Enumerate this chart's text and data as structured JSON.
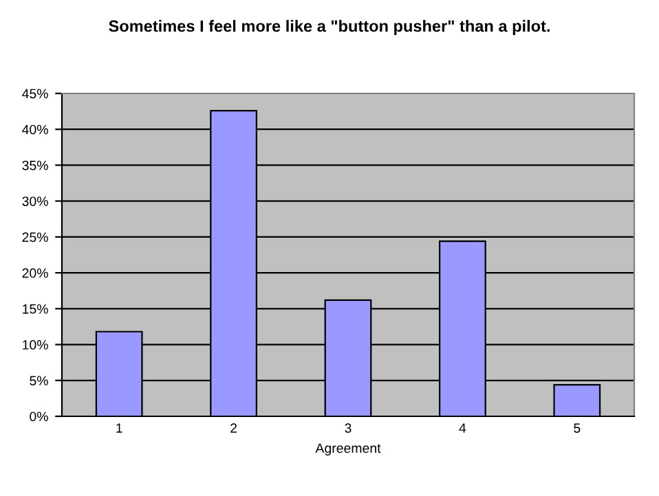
{
  "chart_data": {
    "type": "bar",
    "title": "Sometimes I feel more like a \"button pusher\" than a pilot.",
    "xlabel": "Agreement",
    "categories": [
      "1",
      "2",
      "3",
      "4",
      "5"
    ],
    "values": [
      11.8,
      42.6,
      16.2,
      24.4,
      4.4
    ],
    "color": "#9999ff",
    "ylim": [
      0,
      45
    ],
    "yticks": [
      {
        "value": 0,
        "label": "0%"
      },
      {
        "value": 5,
        "label": "5%"
      },
      {
        "value": 10,
        "label": "10%"
      },
      {
        "value": 15,
        "label": "15%"
      },
      {
        "value": 20,
        "label": "20%"
      },
      {
        "value": 25,
        "label": "25%"
      },
      {
        "value": 30,
        "label": "30%"
      },
      {
        "value": 35,
        "label": "35%"
      },
      {
        "value": 40,
        "label": "40%"
      },
      {
        "value": 45,
        "label": "45%"
      }
    ],
    "grid": "y",
    "legend": false
  }
}
